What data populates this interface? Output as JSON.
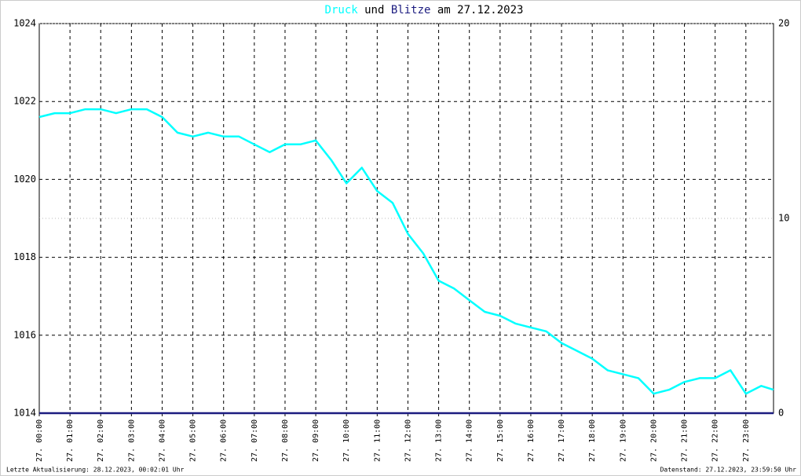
{
  "chart_data": {
    "type": "line",
    "title_joiner": "und",
    "title_suffix": "am 27.12.2023",
    "footer_left": "Letzte Aktualisierung: 28.12.2023, 00:02:01 Uhr",
    "footer_right": "Datenstand: 27.12.2023, 23:59:50 Uhr",
    "x": [
      0,
      0.5,
      1,
      1.5,
      2,
      2.5,
      3,
      3.5,
      4,
      4.5,
      5,
      5.5,
      6,
      6.5,
      7,
      7.5,
      8,
      8.5,
      9,
      9.5,
      10,
      10.5,
      11,
      11.5,
      12,
      12.5,
      13,
      13.5,
      14,
      14.5,
      15,
      15.5,
      16,
      16.5,
      17,
      17.5,
      18,
      18.5,
      19,
      19.5,
      20,
      20.5,
      21,
      21.5,
      22,
      22.5,
      23,
      23.5,
      23.9
    ],
    "xlim": [
      0,
      23.9
    ],
    "xticks": [
      {
        "value": 0,
        "label": "27. 00:00"
      },
      {
        "value": 1,
        "label": "27. 01:00"
      },
      {
        "value": 2,
        "label": "27. 02:00"
      },
      {
        "value": 3,
        "label": "27. 03:00"
      },
      {
        "value": 4,
        "label": "27. 04:00"
      },
      {
        "value": 5,
        "label": "27. 05:00"
      },
      {
        "value": 6,
        "label": "27. 06:00"
      },
      {
        "value": 7,
        "label": "27. 07:00"
      },
      {
        "value": 8,
        "label": "27. 08:00"
      },
      {
        "value": 9,
        "label": "27. 09:00"
      },
      {
        "value": 10,
        "label": "27. 10:00"
      },
      {
        "value": 11,
        "label": "27. 11:00"
      },
      {
        "value": 12,
        "label": "27. 12:00"
      },
      {
        "value": 13,
        "label": "27. 13:00"
      },
      {
        "value": 14,
        "label": "27. 14:00"
      },
      {
        "value": 15,
        "label": "27. 15:00"
      },
      {
        "value": 16,
        "label": "27. 16:00"
      },
      {
        "value": 17,
        "label": "27. 17:00"
      },
      {
        "value": 18,
        "label": "27. 18:00"
      },
      {
        "value": 19,
        "label": "27. 19:00"
      },
      {
        "value": 20,
        "label": "27. 20:00"
      },
      {
        "value": 21,
        "label": "27. 21:00"
      },
      {
        "value": 22,
        "label": "27. 22:00"
      },
      {
        "value": 23,
        "label": "27. 23:00"
      }
    ],
    "ylim": [
      1014,
      1024
    ],
    "yticks": [
      1014,
      1016,
      1018,
      1020,
      1022,
      1024
    ],
    "y2lim": [
      0,
      20
    ],
    "y2ticks": [
      0,
      10,
      20
    ],
    "grid": true,
    "series": [
      {
        "name": "Druck",
        "color": "#00ffff",
        "values": [
          1021.6,
          1021.7,
          1021.7,
          1021.8,
          1021.8,
          1021.7,
          1021.8,
          1021.8,
          1021.6,
          1021.2,
          1021.1,
          1021.2,
          1021.1,
          1021.1,
          1020.9,
          1020.7,
          1020.9,
          1020.9,
          1021.0,
          1020.5,
          1019.9,
          1020.3,
          1019.7,
          1019.4,
          1018.6,
          1018.1,
          1017.4,
          1017.2,
          1016.9,
          1016.6,
          1016.5,
          1016.3,
          1016.2,
          1016.1,
          1015.8,
          1015.6,
          1015.4,
          1015.1,
          1015.0,
          1014.9,
          1014.5,
          1014.6,
          1014.8,
          1014.9,
          1014.9,
          1015.1,
          1014.5,
          1014.7,
          1014.6
        ]
      },
      {
        "name": "Blitze",
        "color": "#1c1c80",
        "axis": "y2",
        "values": [
          0,
          0,
          0,
          0,
          0,
          0,
          0,
          0,
          0,
          0,
          0,
          0,
          0,
          0,
          0,
          0,
          0,
          0,
          0,
          0,
          0,
          0,
          0,
          0,
          0,
          0,
          0,
          0,
          0,
          0,
          0,
          0,
          0,
          0,
          0,
          0,
          0,
          0,
          0,
          0,
          0,
          0,
          0,
          0,
          0,
          0,
          0,
          0,
          0
        ]
      }
    ]
  }
}
